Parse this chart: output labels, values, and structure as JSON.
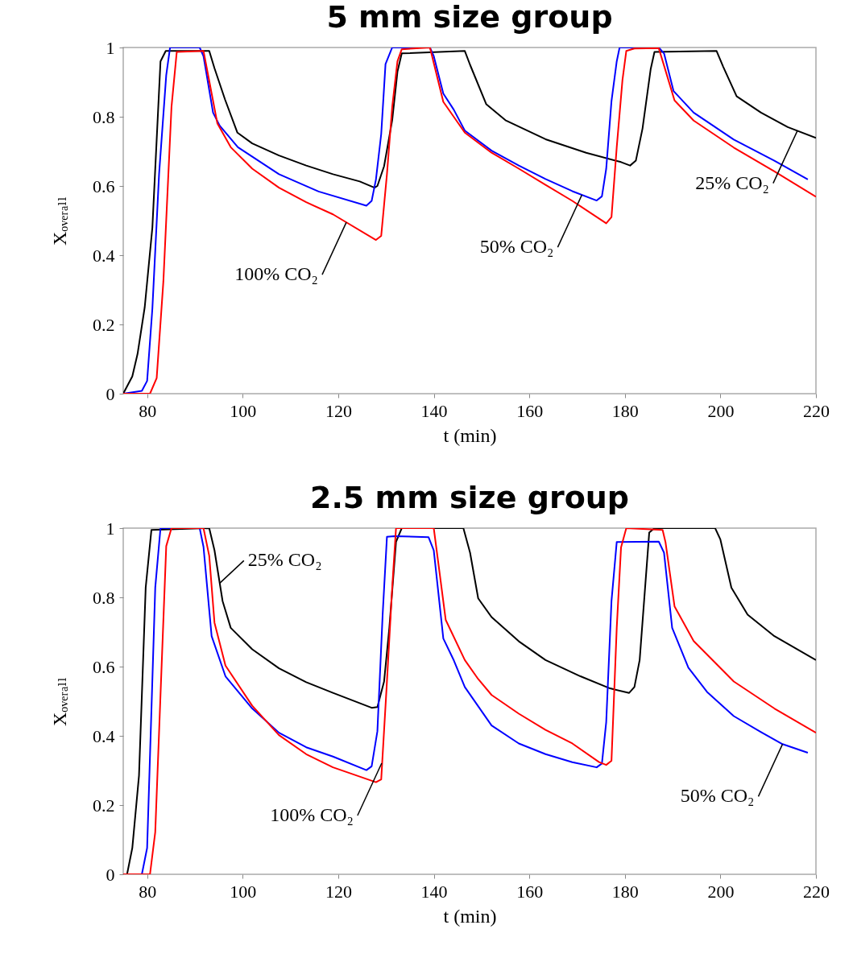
{
  "chart_data": [
    {
      "type": "line",
      "title": "5 mm size group",
      "xlabel": "t (min)",
      "ylabel": "Xₒᵥₑᵣₐₗₗ",
      "xlim": [
        75,
        220
      ],
      "ylim": [
        0,
        1
      ],
      "xticks": [
        80,
        100,
        120,
        140,
        160,
        180,
        200,
        220
      ],
      "yticks": [
        0,
        0.2,
        0.4,
        0.6,
        0.8,
        1
      ],
      "series": [
        {
          "color": "#000000",
          "x": [
            75,
            76.9,
            78.0,
            79.5,
            81.1,
            82.8,
            83.9,
            93.0,
            94.1,
            96.3,
            98.9,
            102,
            107.6,
            113.3,
            118.9,
            124.5,
            127.6,
            128.2,
            129.6,
            131.3,
            132.4,
            133.3,
            146.5,
            147.6,
            151,
            155,
            163.4,
            171.9,
            179.2,
            181.1,
            182.3,
            183.7,
            185.4,
            186.2,
            199.2,
            200.6,
            203.4,
            208.5,
            214.1,
            220
          ],
          "values": [
            0,
            0.05,
            0.115,
            0.25,
            0.48,
            0.96,
            0.99,
            0.99,
            0.94,
            0.85,
            0.754,
            0.723,
            0.688,
            0.659,
            0.634,
            0.613,
            0.595,
            0.6,
            0.657,
            0.79,
            0.93,
            0.983,
            0.99,
            0.95,
            0.836,
            0.79,
            0.735,
            0.696,
            0.669,
            0.659,
            0.673,
            0.766,
            0.937,
            0.987,
            0.99,
            0.944,
            0.859,
            0.812,
            0.77,
            0.739
          ]
        },
        {
          "color": "#0000ff",
          "x": [
            75,
            78.9,
            80,
            81.1,
            82.5,
            84,
            84.8,
            91,
            91.8,
            93.8,
            95.2,
            99,
            107.6,
            115.9,
            125.9,
            127,
            127.9,
            129,
            129.9,
            131.3,
            139.2,
            140,
            142,
            144.2,
            146.5,
            152.1,
            157.8,
            163.4,
            169,
            174.1,
            175.2,
            176.1,
            177.2,
            178.3,
            178.9,
            187.1,
            188.2,
            190.2,
            194.4,
            202.8,
            211.3,
            218.3
          ],
          "values": [
            0,
            0.008,
            0.037,
            0.246,
            0.634,
            0.92,
            1,
            1,
            0.975,
            0.812,
            0.774,
            0.712,
            0.634,
            0.584,
            0.543,
            0.557,
            0.619,
            0.75,
            0.952,
            1,
            1,
            0.975,
            0.867,
            0.82,
            0.76,
            0.702,
            0.659,
            0.62,
            0.585,
            0.558,
            0.57,
            0.65,
            0.845,
            0.96,
            1,
            1,
            0.983,
            0.874,
            0.812,
            0.734,
            0.673,
            0.619
          ]
        },
        {
          "color": "#ff0000",
          "x": [
            75,
            80.6,
            82,
            83.4,
            85.1,
            86.2,
            91.8,
            94.7,
            97.5,
            102,
            107.6,
            113.3,
            118.9,
            127.9,
            129,
            130.2,
            131.3,
            132.4,
            133.3,
            139.2,
            142,
            146.5,
            152.1,
            157.8,
            163.4,
            169,
            176.1,
            177.2,
            178.3,
            179.5,
            180.3,
            182,
            187.1,
            190.4,
            194.4,
            202.8,
            211.3,
            220
          ],
          "values": [
            0,
            0,
            0.045,
            0.324,
            0.828,
            0.987,
            0.99,
            0.781,
            0.712,
            0.65,
            0.595,
            0.553,
            0.518,
            0.444,
            0.456,
            0.634,
            0.828,
            0.96,
            0.995,
            1,
            0.843,
            0.754,
            0.696,
            0.65,
            0.603,
            0.557,
            0.492,
            0.51,
            0.712,
            0.906,
            0.99,
            0.997,
            0.998,
            0.847,
            0.789,
            0.711,
            0.642,
            0.569
          ]
        }
      ],
      "annotations": [
        {
          "text": "100% CO₂",
          "x": 121.7,
          "y": 0.495
        },
        {
          "text": "50% CO₂",
          "x": 171,
          "y": 0.574
        },
        {
          "text": "25% CO₂",
          "x": 216.1,
          "y": 0.759
        }
      ]
    },
    {
      "type": "line",
      "title": "2.5 mm size group",
      "xlabel": "t (min)",
      "ylabel": "Xₒᵥₑᵣₐₗₗ",
      "xlim": [
        75,
        220
      ],
      "ylim": [
        0,
        1
      ],
      "xticks": [
        80,
        100,
        120,
        140,
        160,
        180,
        200,
        220
      ],
      "yticks": [
        0,
        0.2,
        0.4,
        0.6,
        0.8,
        1
      ],
      "series": [
        {
          "color": "#000000",
          "x": [
            75,
            75.8,
            76.9,
            78.3,
            79.7,
            80.9,
            93.0,
            94.1,
            95.8,
            97.5,
            102,
            107.6,
            113.3,
            118.9,
            127,
            128.2,
            129.6,
            130.7,
            132.1,
            133.3,
            146.2,
            147.6,
            149.3,
            152.1,
            157.8,
            163.4,
            170.7,
            176.9,
            180.9,
            182,
            183.1,
            185.1,
            186.2,
            198.9,
            200,
            202.3,
            205.7,
            211.3,
            220
          ],
          "values": [
            0,
            0,
            0.076,
            0.285,
            0.828,
            0.995,
            1,
            0.936,
            0.789,
            0.712,
            0.65,
            0.595,
            0.555,
            0.524,
            0.481,
            0.483,
            0.557,
            0.712,
            0.96,
            1,
            1,
            0.929,
            0.797,
            0.743,
            0.673,
            0.619,
            0.572,
            0.537,
            0.524,
            0.541,
            0.619,
            0.987,
            1,
            1,
            0.967,
            0.828,
            0.75,
            0.688,
            0.619
          ]
        },
        {
          "color": "#0000ff",
          "x": [
            75,
            78.9,
            80,
            81.7,
            82.8,
            91,
            91.8,
            93.5,
            96.4,
            102,
            107.6,
            113.3,
            118.9,
            125.9,
            127,
            128.2,
            129.3,
            130.2,
            131.8,
            138.9,
            140,
            142,
            144.2,
            146.5,
            152.1,
            157.8,
            163.4,
            169,
            174.1,
            175.2,
            176.1,
            177.2,
            178.3,
            187.1,
            188.2,
            189.9,
            193.3,
            197.2,
            202.8,
            208.5,
            213,
            218.3
          ],
          "values": [
            0,
            0,
            0.076,
            0.828,
            1,
            1,
            0.946,
            0.688,
            0.572,
            0.479,
            0.409,
            0.367,
            0.34,
            0.301,
            0.312,
            0.413,
            0.75,
            0.975,
            0.977,
            0.974,
            0.936,
            0.681,
            0.618,
            0.541,
            0.43,
            0.378,
            0.347,
            0.324,
            0.309,
            0.32,
            0.44,
            0.789,
            0.96,
            0.961,
            0.929,
            0.712,
            0.597,
            0.527,
            0.457,
            0.411,
            0.376,
            0.351
          ]
        },
        {
          "color": "#ff0000",
          "x": [
            75,
            80.6,
            81.7,
            82.8,
            84,
            85.1,
            91.8,
            93,
            94.1,
            96.4,
            102,
            107.6,
            113.3,
            118.9,
            127.9,
            129,
            130.2,
            131.3,
            132.1,
            140,
            140.9,
            142.5,
            146.5,
            149.3,
            152.1,
            157.8,
            163.4,
            169,
            174.6,
            176.1,
            177.2,
            178.3,
            179.2,
            180.3,
            187.9,
            188.5,
            190.4,
            194.4,
            202.8,
            211.3,
            220
          ],
          "values": [
            0,
            0,
            0.122,
            0.518,
            0.948,
            1,
            1,
            0.92,
            0.727,
            0.603,
            0.487,
            0.402,
            0.347,
            0.309,
            0.266,
            0.274,
            0.557,
            0.828,
            1,
            1,
            0.905,
            0.735,
            0.619,
            0.564,
            0.518,
            0.464,
            0.417,
            0.378,
            0.324,
            0.316,
            0.328,
            0.712,
            0.944,
            1,
            0.995,
            0.96,
            0.774,
            0.674,
            0.557,
            0.479,
            0.409
          ]
        }
      ],
      "annotations": [
        {
          "text": "25% CO₂",
          "x": 95.2,
          "y": 0.841
        },
        {
          "text": "100% CO₂",
          "x": 129.1,
          "y": 0.321
        },
        {
          "text": "50% CO₂",
          "x": 213,
          "y": 0.376
        }
      ]
    }
  ]
}
